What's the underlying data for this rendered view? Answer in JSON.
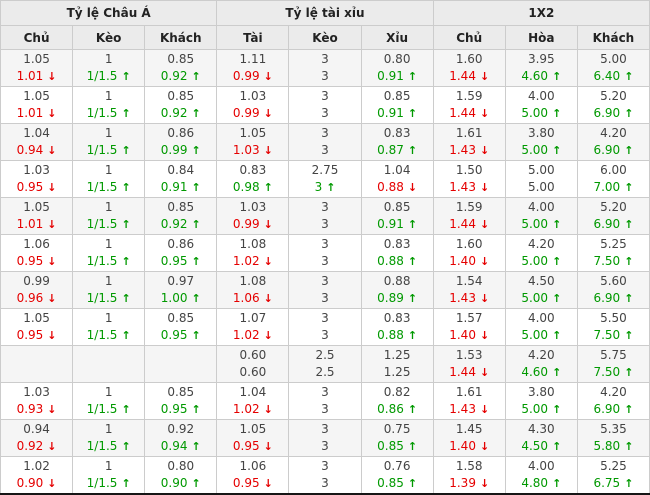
{
  "table": {
    "sections": [
      {
        "label": "Tỷ lệ Châu Á"
      },
      {
        "label": "Tỷ lệ tài xỉu"
      },
      {
        "label": "1X2"
      }
    ],
    "columns": [
      "Chủ",
      "Kèo",
      "Khách",
      "Tài",
      "Kèo",
      "Xỉu",
      "Chủ",
      "Hòa",
      "Khách"
    ],
    "arrow_up": "↑",
    "arrow_down": "↓",
    "colors": {
      "up_green": "#009900",
      "down_red": "#e50000",
      "header_bg": "#ebebeb",
      "row_alt_bg": "#f5f5f5",
      "border": "#cccccc"
    },
    "rows": [
      {
        "cells": [
          {
            "v1": "1.05",
            "v2": "1.01",
            "dir": "down"
          },
          {
            "v1": "1",
            "v2": "1/1.5",
            "dir": "up"
          },
          {
            "v1": "0.85",
            "v2": "0.92",
            "dir": "up"
          },
          {
            "v1": "1.11",
            "v2": "0.99",
            "dir": "down"
          },
          {
            "v1": "3",
            "v2": "3",
            "dir": "none"
          },
          {
            "v1": "0.80",
            "v2": "0.91",
            "dir": "up"
          },
          {
            "v1": "1.60",
            "v2": "1.44",
            "dir": "down"
          },
          {
            "v1": "3.95",
            "v2": "4.60",
            "dir": "up"
          },
          {
            "v1": "5.00",
            "v2": "6.40",
            "dir": "up"
          }
        ]
      },
      {
        "cells": [
          {
            "v1": "1.05",
            "v2": "1.01",
            "dir": "down"
          },
          {
            "v1": "1",
            "v2": "1/1.5",
            "dir": "up"
          },
          {
            "v1": "0.85",
            "v2": "0.92",
            "dir": "up"
          },
          {
            "v1": "1.03",
            "v2": "0.99",
            "dir": "down"
          },
          {
            "v1": "3",
            "v2": "3",
            "dir": "none"
          },
          {
            "v1": "0.85",
            "v2": "0.91",
            "dir": "up"
          },
          {
            "v1": "1.59",
            "v2": "1.44",
            "dir": "down"
          },
          {
            "v1": "4.00",
            "v2": "5.00",
            "dir": "up"
          },
          {
            "v1": "5.20",
            "v2": "6.90",
            "dir": "up"
          }
        ]
      },
      {
        "cells": [
          {
            "v1": "1.04",
            "v2": "0.94",
            "dir": "down"
          },
          {
            "v1": "1",
            "v2": "1/1.5",
            "dir": "up"
          },
          {
            "v1": "0.86",
            "v2": "0.99",
            "dir": "up"
          },
          {
            "v1": "1.05",
            "v2": "1.03",
            "dir": "down"
          },
          {
            "v1": "3",
            "v2": "3",
            "dir": "none"
          },
          {
            "v1": "0.83",
            "v2": "0.87",
            "dir": "up"
          },
          {
            "v1": "1.61",
            "v2": "1.43",
            "dir": "down"
          },
          {
            "v1": "3.80",
            "v2": "5.00",
            "dir": "up"
          },
          {
            "v1": "4.20",
            "v2": "6.90",
            "dir": "up"
          }
        ]
      },
      {
        "cells": [
          {
            "v1": "1.03",
            "v2": "0.95",
            "dir": "down"
          },
          {
            "v1": "1",
            "v2": "1/1.5",
            "dir": "up"
          },
          {
            "v1": "0.84",
            "v2": "0.91",
            "dir": "up"
          },
          {
            "v1": "0.83",
            "v2": "0.98",
            "dir": "up"
          },
          {
            "v1": "2.75",
            "v2": "3",
            "dir": "up"
          },
          {
            "v1": "1.04",
            "v2": "0.88",
            "dir": "down"
          },
          {
            "v1": "1.50",
            "v2": "1.43",
            "dir": "down"
          },
          {
            "v1": "5.00",
            "v2": "5.00",
            "dir": "none"
          },
          {
            "v1": "6.00",
            "v2": "7.00",
            "dir": "up"
          }
        ]
      },
      {
        "cells": [
          {
            "v1": "1.05",
            "v2": "1.01",
            "dir": "down"
          },
          {
            "v1": "1",
            "v2": "1/1.5",
            "dir": "up"
          },
          {
            "v1": "0.85",
            "v2": "0.92",
            "dir": "up"
          },
          {
            "v1": "1.03",
            "v2": "0.99",
            "dir": "down"
          },
          {
            "v1": "3",
            "v2": "3",
            "dir": "none"
          },
          {
            "v1": "0.85",
            "v2": "0.91",
            "dir": "up"
          },
          {
            "v1": "1.59",
            "v2": "1.44",
            "dir": "down"
          },
          {
            "v1": "4.00",
            "v2": "5.00",
            "dir": "up"
          },
          {
            "v1": "5.20",
            "v2": "6.90",
            "dir": "up"
          }
        ]
      },
      {
        "cells": [
          {
            "v1": "1.06",
            "v2": "0.95",
            "dir": "down"
          },
          {
            "v1": "1",
            "v2": "1/1.5",
            "dir": "up"
          },
          {
            "v1": "0.86",
            "v2": "0.95",
            "dir": "up"
          },
          {
            "v1": "1.08",
            "v2": "1.02",
            "dir": "down"
          },
          {
            "v1": "3",
            "v2": "3",
            "dir": "none"
          },
          {
            "v1": "0.83",
            "v2": "0.88",
            "dir": "up"
          },
          {
            "v1": "1.60",
            "v2": "1.40",
            "dir": "down"
          },
          {
            "v1": "4.20",
            "v2": "5.00",
            "dir": "up"
          },
          {
            "v1": "5.25",
            "v2": "7.50",
            "dir": "up"
          }
        ]
      },
      {
        "cells": [
          {
            "v1": "0.99",
            "v2": "0.96",
            "dir": "down"
          },
          {
            "v1": "1",
            "v2": "1/1.5",
            "dir": "up"
          },
          {
            "v1": "0.97",
            "v2": "1.00",
            "dir": "up"
          },
          {
            "v1": "1.08",
            "v2": "1.06",
            "dir": "down"
          },
          {
            "v1": "3",
            "v2": "3",
            "dir": "none"
          },
          {
            "v1": "0.88",
            "v2": "0.89",
            "dir": "up"
          },
          {
            "v1": "1.54",
            "v2": "1.43",
            "dir": "down"
          },
          {
            "v1": "4.50",
            "v2": "5.00",
            "dir": "up"
          },
          {
            "v1": "5.60",
            "v2": "6.90",
            "dir": "up"
          }
        ]
      },
      {
        "cells": [
          {
            "v1": "1.05",
            "v2": "0.95",
            "dir": "down"
          },
          {
            "v1": "1",
            "v2": "1/1.5",
            "dir": "up"
          },
          {
            "v1": "0.85",
            "v2": "0.95",
            "dir": "up"
          },
          {
            "v1": "1.07",
            "v2": "1.02",
            "dir": "down"
          },
          {
            "v1": "3",
            "v2": "3",
            "dir": "none"
          },
          {
            "v1": "0.83",
            "v2": "0.88",
            "dir": "up"
          },
          {
            "v1": "1.57",
            "v2": "1.40",
            "dir": "down"
          },
          {
            "v1": "4.00",
            "v2": "5.00",
            "dir": "up"
          },
          {
            "v1": "5.50",
            "v2": "7.50",
            "dir": "up"
          }
        ]
      },
      {
        "cells": [
          {
            "v1": "",
            "v2": "",
            "dir": "none"
          },
          {
            "v1": "",
            "v2": "",
            "dir": "none"
          },
          {
            "v1": "",
            "v2": "",
            "dir": "none"
          },
          {
            "v1": "0.60",
            "v2": "0.60",
            "dir": "none"
          },
          {
            "v1": "2.5",
            "v2": "2.5",
            "dir": "none"
          },
          {
            "v1": "1.25",
            "v2": "1.25",
            "dir": "none"
          },
          {
            "v1": "1.53",
            "v2": "1.44",
            "dir": "down"
          },
          {
            "v1": "4.20",
            "v2": "4.60",
            "dir": "up"
          },
          {
            "v1": "5.75",
            "v2": "7.50",
            "dir": "up"
          }
        ]
      },
      {
        "cells": [
          {
            "v1": "1.03",
            "v2": "0.93",
            "dir": "down"
          },
          {
            "v1": "1",
            "v2": "1/1.5",
            "dir": "up"
          },
          {
            "v1": "0.85",
            "v2": "0.95",
            "dir": "up"
          },
          {
            "v1": "1.04",
            "v2": "1.02",
            "dir": "down"
          },
          {
            "v1": "3",
            "v2": "3",
            "dir": "none"
          },
          {
            "v1": "0.82",
            "v2": "0.86",
            "dir": "up"
          },
          {
            "v1": "1.61",
            "v2": "1.43",
            "dir": "down"
          },
          {
            "v1": "3.80",
            "v2": "5.00",
            "dir": "up"
          },
          {
            "v1": "4.20",
            "v2": "6.90",
            "dir": "up"
          }
        ]
      },
      {
        "cells": [
          {
            "v1": "0.94",
            "v2": "0.92",
            "dir": "down"
          },
          {
            "v1": "1",
            "v2": "1/1.5",
            "dir": "up"
          },
          {
            "v1": "0.92",
            "v2": "0.94",
            "dir": "up"
          },
          {
            "v1": "1.05",
            "v2": "0.95",
            "dir": "down"
          },
          {
            "v1": "3",
            "v2": "3",
            "dir": "none"
          },
          {
            "v1": "0.75",
            "v2": "0.85",
            "dir": "up"
          },
          {
            "v1": "1.45",
            "v2": "1.40",
            "dir": "down"
          },
          {
            "v1": "4.30",
            "v2": "4.50",
            "dir": "up"
          },
          {
            "v1": "5.35",
            "v2": "5.80",
            "dir": "up"
          }
        ]
      },
      {
        "cells": [
          {
            "v1": "1.02",
            "v2": "0.90",
            "dir": "down"
          },
          {
            "v1": "1",
            "v2": "1/1.5",
            "dir": "up"
          },
          {
            "v1": "0.80",
            "v2": "0.90",
            "dir": "up"
          },
          {
            "v1": "1.06",
            "v2": "0.95",
            "dir": "down"
          },
          {
            "v1": "3",
            "v2": "3",
            "dir": "none"
          },
          {
            "v1": "0.76",
            "v2": "0.85",
            "dir": "up"
          },
          {
            "v1": "1.58",
            "v2": "1.39",
            "dir": "down"
          },
          {
            "v1": "4.00",
            "v2": "4.80",
            "dir": "up"
          },
          {
            "v1": "5.25",
            "v2": "6.75",
            "dir": "up"
          }
        ]
      }
    ]
  }
}
